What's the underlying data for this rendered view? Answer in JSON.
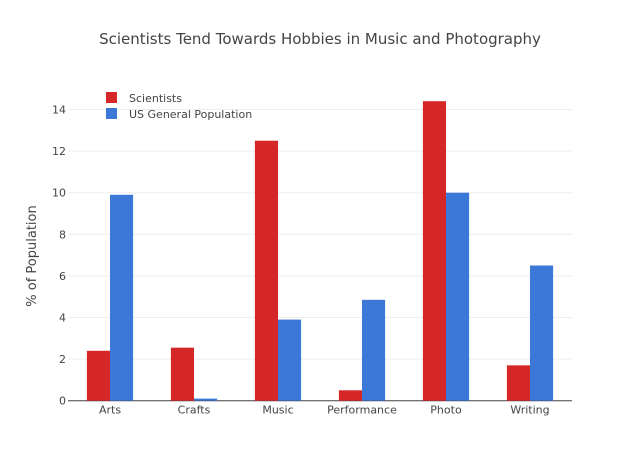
{
  "chart_data": {
    "type": "bar",
    "title": "Scientists Tend Towards Hobbies in Music and Photography",
    "xlabel": "",
    "ylabel": "% of Population",
    "ylim": [
      0,
      14.5
    ],
    "yticks": [
      0,
      2,
      4,
      6,
      8,
      10,
      12,
      14
    ],
    "grid": true,
    "legend_placement": "top-left",
    "categories": [
      "Arts",
      "Crafts",
      "Music",
      "Performance",
      "Photo",
      "Writing"
    ],
    "series": [
      {
        "name": "Scientists",
        "color": "#d62728",
        "values": [
          2.4,
          2.55,
          12.5,
          0.5,
          14.4,
          1.7
        ]
      },
      {
        "name": "US General Population",
        "color": "#3c78d8",
        "values": [
          9.9,
          0.1,
          3.9,
          4.85,
          10.0,
          6.5
        ]
      }
    ]
  }
}
